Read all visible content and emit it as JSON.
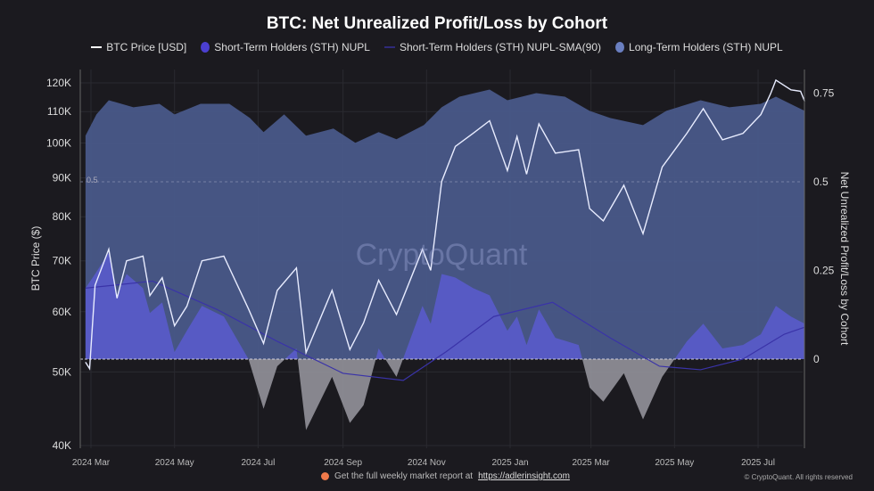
{
  "chart_data": {
    "type": "area",
    "title": "BTC: Net Unrealized Profit/Loss by Cohort",
    "ylabel_left": "BTC Price ($)",
    "ylabel_right": "Net Unrealized Profit/Loss by Cohort",
    "left_axis": {
      "scale": "log",
      "range": [
        40000,
        125000
      ],
      "ticks": [
        40000,
        50000,
        60000,
        70000,
        80000,
        90000,
        100000,
        110000,
        120000
      ],
      "tick_labels": [
        "40K",
        "50K",
        "60K",
        "70K",
        "80K",
        "90K",
        "100K",
        "110K",
        "120K"
      ]
    },
    "right_axis": {
      "range": [
        -0.25,
        0.8
      ],
      "ticks": [
        0,
        0.25,
        0.5,
        0.75
      ],
      "tick_labels": [
        "0",
        "0.25",
        "0.5",
        "0.75"
      ]
    },
    "x_ticks": [
      [
        "2024-03-01",
        "2024 Mar"
      ],
      [
        "2024-05-01",
        "2024 May"
      ],
      [
        "2024-07-01",
        "2024 Jul"
      ],
      [
        "2024-09-01",
        "2024 Sep"
      ],
      [
        "2024-11-01",
        "2024 Nov"
      ],
      [
        "2025-01-01",
        "2025 Jan"
      ],
      [
        "2025-03-01",
        "2025 Mar"
      ],
      [
        "2025-05-01",
        "2025 May"
      ],
      [
        "2025-07-01",
        "2025 Jul"
      ]
    ],
    "annotation": "0.5",
    "watermark": "CryptoQuant",
    "legend_position": "top",
    "series": [
      {
        "name": "BTC Price [USD]",
        "axis": "left",
        "color": "#ffffff",
        "points": [
          [
            "2024-02-26",
            51500
          ],
          [
            "2024-02-29",
            50500
          ],
          [
            "2024-03-04",
            65000
          ],
          [
            "2024-03-14",
            72500
          ],
          [
            "2024-03-20",
            62500
          ],
          [
            "2024-03-27",
            70000
          ],
          [
            "2024-04-08",
            71000
          ],
          [
            "2024-04-13",
            63000
          ],
          [
            "2024-04-22",
            66500
          ],
          [
            "2024-05-01",
            57500
          ],
          [
            "2024-05-10",
            61000
          ],
          [
            "2024-05-21",
            70000
          ],
          [
            "2024-06-06",
            71000
          ],
          [
            "2024-06-24",
            60500
          ],
          [
            "2024-07-05",
            54500
          ],
          [
            "2024-07-15",
            64000
          ],
          [
            "2024-07-29",
            68500
          ],
          [
            "2024-08-05",
            53000
          ],
          [
            "2024-08-24",
            64000
          ],
          [
            "2024-09-06",
            53500
          ],
          [
            "2024-09-16",
            58000
          ],
          [
            "2024-09-27",
            66000
          ],
          [
            "2024-10-10",
            59500
          ],
          [
            "2024-10-29",
            72500
          ],
          [
            "2024-11-04",
            68000
          ],
          [
            "2024-11-12",
            89000
          ],
          [
            "2024-11-22",
            99000
          ],
          [
            "2024-12-05",
            103000
          ],
          [
            "2024-12-17",
            107000
          ],
          [
            "2024-12-30",
            92000
          ],
          [
            "2025-01-06",
            102000
          ],
          [
            "2025-01-13",
            91000
          ],
          [
            "2025-01-22",
            106000
          ],
          [
            "2025-02-03",
            97000
          ],
          [
            "2025-02-20",
            98000
          ],
          [
            "2025-02-28",
            82000
          ],
          [
            "2025-03-10",
            79000
          ],
          [
            "2025-03-25",
            88000
          ],
          [
            "2025-04-08",
            76000
          ],
          [
            "2025-04-22",
            93000
          ],
          [
            "2025-05-10",
            103000
          ],
          [
            "2025-05-22",
            111000
          ],
          [
            "2025-06-05",
            101000
          ],
          [
            "2025-06-20",
            103000
          ],
          [
            "2025-07-03",
            109000
          ],
          [
            "2025-07-10",
            116000
          ],
          [
            "2025-07-14",
            121000
          ],
          [
            "2025-07-25",
            117500
          ],
          [
            "2025-08-01",
            117000
          ],
          [
            "2025-08-04",
            113500
          ]
        ]
      },
      {
        "name": "Short-Term Holders (STH) NUPL",
        "axis": "right",
        "color": "#4b3fd0",
        "points": [
          [
            "2024-02-26",
            0.2
          ],
          [
            "2024-03-04",
            0.24
          ],
          [
            "2024-03-14",
            0.3
          ],
          [
            "2024-03-20",
            0.18
          ],
          [
            "2024-03-27",
            0.24
          ],
          [
            "2024-04-08",
            0.2
          ],
          [
            "2024-04-13",
            0.13
          ],
          [
            "2024-04-22",
            0.16
          ],
          [
            "2024-05-01",
            0.02
          ],
          [
            "2024-05-10",
            0.08
          ],
          [
            "2024-05-21",
            0.15
          ],
          [
            "2024-06-06",
            0.12
          ],
          [
            "2024-06-24",
            0.0
          ],
          [
            "2024-07-05",
            -0.14
          ],
          [
            "2024-07-15",
            -0.02
          ],
          [
            "2024-07-29",
            0.03
          ],
          [
            "2024-08-05",
            -0.2
          ],
          [
            "2024-08-24",
            -0.05
          ],
          [
            "2024-09-06",
            -0.18
          ],
          [
            "2024-09-16",
            -0.13
          ],
          [
            "2024-09-27",
            0.03
          ],
          [
            "2024-10-10",
            -0.05
          ],
          [
            "2024-10-29",
            0.15
          ],
          [
            "2024-11-04",
            0.1
          ],
          [
            "2024-11-12",
            0.24
          ],
          [
            "2024-11-22",
            0.23
          ],
          [
            "2024-12-05",
            0.2
          ],
          [
            "2024-12-17",
            0.18
          ],
          [
            "2024-12-30",
            0.08
          ],
          [
            "2025-01-06",
            0.12
          ],
          [
            "2025-01-13",
            0.04
          ],
          [
            "2025-01-22",
            0.14
          ],
          [
            "2025-02-03",
            0.06
          ],
          [
            "2025-02-20",
            0.04
          ],
          [
            "2025-02-28",
            -0.08
          ],
          [
            "2025-03-10",
            -0.12
          ],
          [
            "2025-03-25",
            -0.04
          ],
          [
            "2025-04-08",
            -0.17
          ],
          [
            "2025-04-22",
            -0.05
          ],
          [
            "2025-05-10",
            0.05
          ],
          [
            "2025-05-22",
            0.1
          ],
          [
            "2025-06-05",
            0.03
          ],
          [
            "2025-06-20",
            0.04
          ],
          [
            "2025-07-03",
            0.07
          ],
          [
            "2025-07-14",
            0.15
          ],
          [
            "2025-07-25",
            0.12
          ],
          [
            "2025-08-04",
            0.1
          ]
        ]
      },
      {
        "name": "Short-Term Holders (STH) NUPL-SMA(90)",
        "axis": "right",
        "color": "#3a33a8",
        "points": [
          [
            "2024-02-26",
            0.2
          ],
          [
            "2024-04-15",
            0.22
          ],
          [
            "2024-06-01",
            0.14
          ],
          [
            "2024-07-15",
            0.05
          ],
          [
            "2024-09-01",
            -0.04
          ],
          [
            "2024-10-15",
            -0.06
          ],
          [
            "2024-11-15",
            0.02
          ],
          [
            "2024-12-20",
            0.12
          ],
          [
            "2025-02-01",
            0.16
          ],
          [
            "2025-03-15",
            0.06
          ],
          [
            "2025-04-20",
            -0.02
          ],
          [
            "2025-05-20",
            -0.03
          ],
          [
            "2025-06-20",
            0.0
          ],
          [
            "2025-07-20",
            0.07
          ],
          [
            "2025-08-04",
            0.09
          ]
        ]
      },
      {
        "name": "Long-Term Holders (STH) NUPL",
        "axis": "right",
        "color": "#5a6fae",
        "points": [
          [
            "2024-02-26",
            0.63
          ],
          [
            "2024-03-05",
            0.69
          ],
          [
            "2024-03-14",
            0.73
          ],
          [
            "2024-04-01",
            0.71
          ],
          [
            "2024-04-20",
            0.72
          ],
          [
            "2024-05-01",
            0.69
          ],
          [
            "2024-05-20",
            0.72
          ],
          [
            "2024-06-10",
            0.72
          ],
          [
            "2024-06-25",
            0.68
          ],
          [
            "2024-07-05",
            0.64
          ],
          [
            "2024-07-20",
            0.69
          ],
          [
            "2024-08-05",
            0.63
          ],
          [
            "2024-08-25",
            0.65
          ],
          [
            "2024-09-10",
            0.61
          ],
          [
            "2024-09-27",
            0.64
          ],
          [
            "2024-10-10",
            0.62
          ],
          [
            "2024-10-30",
            0.66
          ],
          [
            "2024-11-12",
            0.71
          ],
          [
            "2024-11-25",
            0.74
          ],
          [
            "2024-12-17",
            0.76
          ],
          [
            "2024-12-30",
            0.73
          ],
          [
            "2025-01-20",
            0.75
          ],
          [
            "2025-02-10",
            0.74
          ],
          [
            "2025-02-28",
            0.7
          ],
          [
            "2025-03-15",
            0.68
          ],
          [
            "2025-04-08",
            0.66
          ],
          [
            "2025-04-25",
            0.7
          ],
          [
            "2025-05-20",
            0.73
          ],
          [
            "2025-06-10",
            0.71
          ],
          [
            "2025-07-03",
            0.72
          ],
          [
            "2025-07-14",
            0.74
          ],
          [
            "2025-08-04",
            0.7
          ]
        ]
      }
    ]
  },
  "legend": {
    "btc_price": "BTC Price [USD]",
    "sth_nupl": "Short-Term Holders (STH) NUPL",
    "sth_sma": "Short-Term Holders (STH) NUPL-SMA(90)",
    "lth_nupl": "Long-Term Holders (STH) NUPL"
  },
  "footer": {
    "text": "Get the full weekly market report at",
    "link": "https://adlerinsight.com",
    "copyright": "© CryptoQuant. All rights reserved"
  }
}
